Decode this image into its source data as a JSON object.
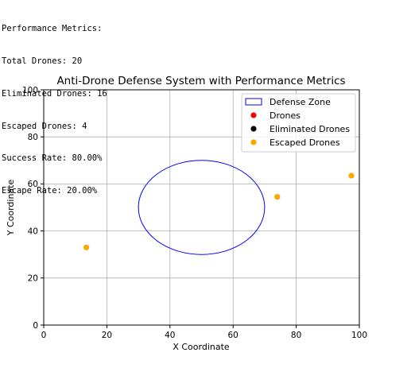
{
  "console": {
    "lines": [
      "Performance Metrics:",
      "Total Drones: 20",
      "Eliminated Drones: 16",
      "Escaped Drones: 4",
      "Success Rate: 80.00%",
      "Escape Rate: 20.00%"
    ]
  },
  "chart_data": {
    "type": "scatter",
    "title": "Anti-Drone Defense System with Performance Metrics",
    "xlabel": "X Coordinate",
    "ylabel": "Y Coordinate",
    "xlim": [
      0,
      100
    ],
    "ylim": [
      0,
      100
    ],
    "xticks": [
      0,
      20,
      40,
      60,
      80,
      100
    ],
    "yticks": [
      0,
      20,
      40,
      60,
      80,
      100
    ],
    "grid": true,
    "legend_position": "top-right",
    "defense_zone": {
      "center": [
        50,
        50
      ],
      "radius": 20,
      "color": "#0000ff"
    },
    "series": [
      {
        "name": "Defense Zone",
        "marker": "circle-outline",
        "color": "#0000ff",
        "points": []
      },
      {
        "name": "Drones",
        "marker": "dot",
        "color": "#ff0000",
        "points": []
      },
      {
        "name": "Eliminated Drones",
        "marker": "dot",
        "color": "#000000",
        "points": []
      },
      {
        "name": "Escaped Drones",
        "marker": "dot",
        "color": "#ffa500",
        "points": [
          [
            13.5,
            33
          ],
          [
            74,
            54.5
          ],
          [
            97.5,
            63.5
          ]
        ]
      }
    ]
  }
}
